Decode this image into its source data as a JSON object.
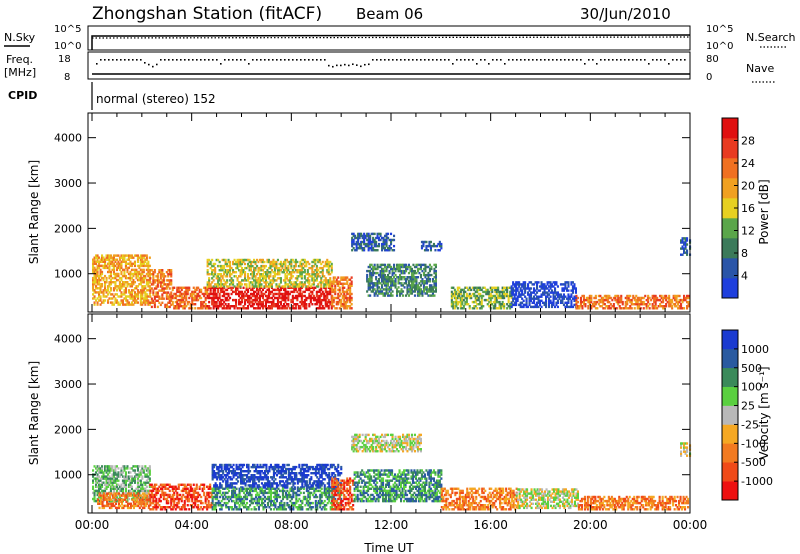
{
  "header": {
    "station": "Zhongshan Station (fitACF)",
    "beam": "Beam 06",
    "date": "30/Jun/2010"
  },
  "top_panels": {
    "nsky_label": "N.Sky",
    "nsearch_label": "N.Search",
    "nsky_ticks": [
      "10^5",
      "10^0"
    ],
    "nsearch_ticks": [
      "10^5",
      "10^0"
    ],
    "freq_label_1": "Freq.",
    "freq_label_2": "[MHz]",
    "freq_ticks": [
      "18",
      "8"
    ],
    "nave_label": "Nave",
    "nave_ticks": [
      "80",
      "0"
    ],
    "cpid_label": "CPID",
    "cpid_text": "normal (stereo) 152"
  },
  "colors": {
    "power_scale": [
      "#1f3fdc",
      "#2a55a8",
      "#3b7a5a",
      "#5aa64a",
      "#e6d020",
      "#f0a020",
      "#f07020",
      "#e83a20",
      "#e01010"
    ],
    "velocity_scale": [
      "#ee1010",
      "#f04a18",
      "#f27a20",
      "#f5a823",
      "#b8b8b8",
      "#5ad040",
      "#3a8a5a",
      "#2a5aa0",
      "#1a3ad0"
    ]
  },
  "chart_data": [
    {
      "type": "heatmap",
      "name": "power",
      "xlabel": "",
      "ylabel": "Slant Range [km]",
      "ylim": [
        200,
        4500
      ],
      "y_ticks": [
        "4000",
        "3000",
        "2000",
        "1000"
      ],
      "y_tick_values": [
        4000,
        3000,
        2000,
        1000
      ],
      "colorbar_label": "Power [dB]",
      "colorbar_ticks": [
        "28",
        "24",
        "20",
        "16",
        "12",
        "8",
        "4"
      ],
      "colorbar_range": [
        0,
        32
      ],
      "x_hours": [
        0,
        24
      ],
      "regions": [
        {
          "t0": 0.0,
          "t1": 2.3,
          "r0": 300,
          "r1": 1400,
          "level": 5
        },
        {
          "t0": 2.3,
          "t1": 3.2,
          "r0": 250,
          "r1": 1100,
          "level": 6
        },
        {
          "t0": 3.2,
          "t1": 4.6,
          "r0": 220,
          "r1": 700,
          "level": 6
        },
        {
          "t0": 4.6,
          "t1": 9.6,
          "r0": 220,
          "r1": 700,
          "level": 8
        },
        {
          "t0": 4.6,
          "t1": 9.6,
          "r0": 700,
          "r1": 1300,
          "level": 4
        },
        {
          "t0": 9.6,
          "t1": 10.4,
          "r0": 220,
          "r1": 900,
          "level": 6
        },
        {
          "t0": 10.4,
          "t1": 12.1,
          "r0": 1500,
          "r1": 1900,
          "level": 1
        },
        {
          "t0": 11.0,
          "t1": 13.8,
          "r0": 500,
          "r1": 1200,
          "level": 2
        },
        {
          "t0": 13.2,
          "t1": 14.0,
          "r0": 1500,
          "r1": 1700,
          "level": 1
        },
        {
          "t0": 14.4,
          "t1": 16.8,
          "r0": 220,
          "r1": 700,
          "level": 3
        },
        {
          "t0": 16.8,
          "t1": 19.4,
          "r0": 250,
          "r1": 800,
          "level": 0
        },
        {
          "t0": 19.4,
          "t1": 23.9,
          "r0": 220,
          "r1": 500,
          "level": 6
        },
        {
          "t0": 23.6,
          "t1": 24.0,
          "r0": 1400,
          "r1": 1800,
          "level": 1
        }
      ]
    },
    {
      "type": "heatmap",
      "name": "velocity",
      "xlabel": "Time UT",
      "ylabel": "Slant Range [km]",
      "ylim": [
        200,
        4500
      ],
      "y_ticks": [
        "4000",
        "3000",
        "2000",
        "1000"
      ],
      "y_tick_values": [
        4000,
        3000,
        2000,
        1000
      ],
      "x_ticks": [
        "00:00",
        "04:00",
        "08:00",
        "12:00",
        "16:00",
        "20:00",
        "00:00"
      ],
      "x_tick_hours": [
        0,
        4,
        8,
        12,
        16,
        20,
        24
      ],
      "colorbar_label": "Velocity [m s⁻¹]",
      "colorbar_ticks": [
        "1000",
        "500",
        "100",
        "25",
        "-25",
        "-100",
        "-500",
        "-1000"
      ],
      "x_hours": [
        0,
        24
      ],
      "regions": [
        {
          "t0": 0.0,
          "t1": 2.3,
          "r0": 400,
          "r1": 1200,
          "level": 5
        },
        {
          "t0": 0.2,
          "t1": 2.3,
          "r0": 250,
          "r1": 600,
          "level": 2
        },
        {
          "t0": 2.3,
          "t1": 4.8,
          "r0": 220,
          "r1": 800,
          "level": 1
        },
        {
          "t0": 4.8,
          "t1": 10.0,
          "r0": 700,
          "r1": 1200,
          "level": 8
        },
        {
          "t0": 4.8,
          "t1": 10.0,
          "r0": 220,
          "r1": 700,
          "level": 6
        },
        {
          "t0": 9.6,
          "t1": 10.5,
          "r0": 220,
          "r1": 900,
          "level": 1
        },
        {
          "t0": 10.4,
          "t1": 13.2,
          "r0": 1500,
          "r1": 1900,
          "level": 4
        },
        {
          "t0": 10.5,
          "t1": 14.0,
          "r0": 400,
          "r1": 1100,
          "level": 6
        },
        {
          "t0": 14.0,
          "t1": 17.0,
          "r0": 220,
          "r1": 700,
          "level": 2
        },
        {
          "t0": 17.0,
          "t1": 19.5,
          "r0": 250,
          "r1": 700,
          "level": 4
        },
        {
          "t0": 19.5,
          "t1": 23.9,
          "r0": 220,
          "r1": 500,
          "level": 2
        },
        {
          "t0": 23.6,
          "t1": 24.0,
          "r0": 1400,
          "r1": 1700,
          "level": 4
        }
      ]
    }
  ]
}
